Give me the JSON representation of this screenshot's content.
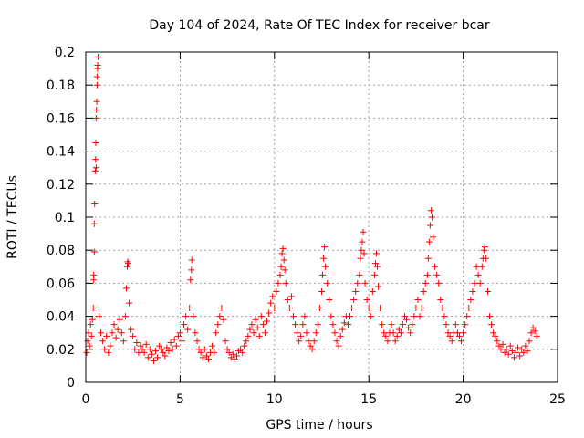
{
  "chart_data": {
    "type": "scatter",
    "title": "Day 104 of 2024, Rate Of TEC Index for receiver bcar",
    "xlabel": "GPS time / hours",
    "ylabel": "ROTI / TECUs",
    "xlim": [
      0,
      25
    ],
    "ylim": [
      0,
      0.2
    ],
    "x_ticks": [
      0,
      5,
      10,
      15,
      20,
      25
    ],
    "x_tick_labels": [
      "0",
      "5",
      "10",
      "15",
      "20",
      "25"
    ],
    "y_ticks": [
      0,
      0.02,
      0.04,
      0.06,
      0.08,
      0.1,
      0.12,
      0.14,
      0.16,
      0.18,
      0.2
    ],
    "y_tick_labels": [
      "0",
      "0.02",
      "0.04",
      "0.06",
      "0.08",
      "0.1",
      "0.12",
      "0.14",
      "0.16",
      "0.18",
      "0.2"
    ],
    "grid": true,
    "marker": "+",
    "color": "#ff0000",
    "series": [
      {
        "name": "ROTI",
        "points": [
          [
            0.05,
            0.018
          ],
          [
            0.1,
            0.025
          ],
          [
            0.15,
            0.03
          ],
          [
            0.2,
            0.022
          ],
          [
            0.25,
            0.035
          ],
          [
            0.3,
            0.028
          ],
          [
            0.35,
            0.038
          ],
          [
            0.4,
            0.045
          ],
          [
            0.42,
            0.065
          ],
          [
            0.45,
            0.096
          ],
          [
            0.47,
            0.108
          ],
          [
            0.5,
            0.128
          ],
          [
            0.52,
            0.135
          ],
          [
            0.53,
            0.145
          ],
          [
            0.55,
            0.16
          ],
          [
            0.57,
            0.165
          ],
          [
            0.58,
            0.17
          ],
          [
            0.6,
            0.18
          ],
          [
            0.62,
            0.19
          ],
          [
            0.63,
            0.192
          ],
          [
            0.65,
            0.197
          ],
          [
            0.6,
            0.185
          ],
          [
            0.55,
            0.13
          ],
          [
            0.45,
            0.079
          ],
          [
            0.42,
            0.062
          ],
          [
            0.7,
            0.04
          ],
          [
            0.8,
            0.03
          ],
          [
            0.9,
            0.025
          ],
          [
            1.0,
            0.02
          ],
          [
            1.1,
            0.028
          ],
          [
            1.2,
            0.018
          ],
          [
            1.3,
            0.022
          ],
          [
            1.4,
            0.03
          ],
          [
            1.5,
            0.035
          ],
          [
            1.6,
            0.027
          ],
          [
            1.7,
            0.032
          ],
          [
            1.8,
            0.038
          ],
          [
            1.9,
            0.03
          ],
          [
            2.0,
            0.025
          ],
          [
            2.1,
            0.04
          ],
          [
            2.15,
            0.057
          ],
          [
            2.2,
            0.07
          ],
          [
            2.22,
            0.073
          ],
          [
            2.25,
            0.072
          ],
          [
            2.3,
            0.048
          ],
          [
            2.4,
            0.032
          ],
          [
            2.5,
            0.028
          ],
          [
            2.6,
            0.02
          ],
          [
            2.7,
            0.024
          ],
          [
            2.8,
            0.018
          ],
          [
            2.9,
            0.022
          ],
          [
            3.0,
            0.02
          ],
          [
            3.1,
            0.018
          ],
          [
            3.2,
            0.023
          ],
          [
            3.3,
            0.015
          ],
          [
            3.4,
            0.02
          ],
          [
            3.5,
            0.017
          ],
          [
            3.6,
            0.013
          ],
          [
            3.7,
            0.019
          ],
          [
            3.8,
            0.015
          ],
          [
            3.9,
            0.022
          ],
          [
            4.0,
            0.02
          ],
          [
            4.1,
            0.018
          ],
          [
            4.2,
            0.016
          ],
          [
            4.3,
            0.021
          ],
          [
            4.4,
            0.019
          ],
          [
            4.5,
            0.024
          ],
          [
            4.6,
            0.02
          ],
          [
            4.7,
            0.026
          ],
          [
            4.8,
            0.022
          ],
          [
            4.9,
            0.028
          ],
          [
            5.0,
            0.03
          ],
          [
            5.1,
            0.025
          ],
          [
            5.2,
            0.035
          ],
          [
            5.3,
            0.04
          ],
          [
            5.4,
            0.032
          ],
          [
            5.5,
            0.045
          ],
          [
            5.55,
            0.062
          ],
          [
            5.6,
            0.068
          ],
          [
            5.62,
            0.074
          ],
          [
            5.7,
            0.04
          ],
          [
            5.8,
            0.03
          ],
          [
            5.9,
            0.025
          ],
          [
            6.0,
            0.02
          ],
          [
            6.1,
            0.018
          ],
          [
            6.2,
            0.015
          ],
          [
            6.3,
            0.02
          ],
          [
            6.4,
            0.016
          ],
          [
            6.5,
            0.014
          ],
          [
            6.6,
            0.018
          ],
          [
            6.7,
            0.022
          ],
          [
            6.8,
            0.018
          ],
          [
            6.9,
            0.03
          ],
          [
            7.0,
            0.035
          ],
          [
            7.1,
            0.04
          ],
          [
            7.2,
            0.045
          ],
          [
            7.3,
            0.038
          ],
          [
            7.4,
            0.025
          ],
          [
            7.5,
            0.02
          ],
          [
            7.6,
            0.018
          ],
          [
            7.7,
            0.015
          ],
          [
            7.8,
            0.017
          ],
          [
            7.9,
            0.014
          ],
          [
            8.0,
            0.016
          ],
          [
            8.1,
            0.019
          ],
          [
            8.2,
            0.02
          ],
          [
            8.3,
            0.018
          ],
          [
            8.4,
            0.022
          ],
          [
            8.5,
            0.025
          ],
          [
            8.6,
            0.028
          ],
          [
            8.7,
            0.032
          ],
          [
            8.8,
            0.035
          ],
          [
            8.9,
            0.03
          ],
          [
            9.0,
            0.038
          ],
          [
            9.1,
            0.033
          ],
          [
            9.2,
            0.028
          ],
          [
            9.3,
            0.04
          ],
          [
            9.4,
            0.035
          ],
          [
            9.5,
            0.03
          ],
          [
            9.6,
            0.037
          ],
          [
            9.7,
            0.042
          ],
          [
            9.8,
            0.048
          ],
          [
            9.9,
            0.052
          ],
          [
            10.0,
            0.045
          ],
          [
            10.1,
            0.055
          ],
          [
            10.2,
            0.06
          ],
          [
            10.3,
            0.065
          ],
          [
            10.35,
            0.07
          ],
          [
            10.4,
            0.078
          ],
          [
            10.45,
            0.081
          ],
          [
            10.5,
            0.074
          ],
          [
            10.55,
            0.068
          ],
          [
            10.6,
            0.06
          ],
          [
            10.7,
            0.05
          ],
          [
            10.8,
            0.045
          ],
          [
            10.9,
            0.052
          ],
          [
            11.0,
            0.04
          ],
          [
            11.1,
            0.035
          ],
          [
            11.2,
            0.03
          ],
          [
            11.3,
            0.025
          ],
          [
            11.4,
            0.028
          ],
          [
            11.5,
            0.035
          ],
          [
            11.6,
            0.04
          ],
          [
            11.7,
            0.03
          ],
          [
            11.8,
            0.025
          ],
          [
            11.9,
            0.022
          ],
          [
            12.0,
            0.02
          ],
          [
            12.1,
            0.025
          ],
          [
            12.2,
            0.03
          ],
          [
            12.3,
            0.035
          ],
          [
            12.4,
            0.045
          ],
          [
            12.5,
            0.055
          ],
          [
            12.55,
            0.065
          ],
          [
            12.6,
            0.075
          ],
          [
            12.65,
            0.082
          ],
          [
            12.7,
            0.07
          ],
          [
            12.8,
            0.06
          ],
          [
            12.9,
            0.05
          ],
          [
            13.0,
            0.04
          ],
          [
            13.1,
            0.035
          ],
          [
            13.2,
            0.03
          ],
          [
            13.3,
            0.025
          ],
          [
            13.4,
            0.022
          ],
          [
            13.5,
            0.028
          ],
          [
            13.6,
            0.032
          ],
          [
            13.7,
            0.036
          ],
          [
            13.8,
            0.04
          ],
          [
            13.9,
            0.035
          ],
          [
            14.0,
            0.04
          ],
          [
            14.1,
            0.045
          ],
          [
            14.2,
            0.05
          ],
          [
            14.3,
            0.055
          ],
          [
            14.4,
            0.06
          ],
          [
            14.5,
            0.065
          ],
          [
            14.55,
            0.075
          ],
          [
            14.6,
            0.08
          ],
          [
            14.65,
            0.085
          ],
          [
            14.7,
            0.091
          ],
          [
            14.75,
            0.078
          ],
          [
            14.8,
            0.06
          ],
          [
            14.9,
            0.05
          ],
          [
            15.0,
            0.045
          ],
          [
            15.1,
            0.04
          ],
          [
            15.2,
            0.055
          ],
          [
            15.3,
            0.065
          ],
          [
            15.35,
            0.072
          ],
          [
            15.4,
            0.078
          ],
          [
            15.45,
            0.07
          ],
          [
            15.5,
            0.058
          ],
          [
            15.6,
            0.045
          ],
          [
            15.7,
            0.035
          ],
          [
            15.8,
            0.03
          ],
          [
            15.9,
            0.028
          ],
          [
            16.0,
            0.025
          ],
          [
            16.1,
            0.03
          ],
          [
            16.2,
            0.035
          ],
          [
            16.3,
            0.03
          ],
          [
            16.4,
            0.025
          ],
          [
            16.5,
            0.028
          ],
          [
            16.6,
            0.032
          ],
          [
            16.7,
            0.03
          ],
          [
            16.8,
            0.035
          ],
          [
            16.9,
            0.04
          ],
          [
            17.0,
            0.038
          ],
          [
            17.1,
            0.033
          ],
          [
            17.2,
            0.03
          ],
          [
            17.3,
            0.035
          ],
          [
            17.4,
            0.04
          ],
          [
            17.5,
            0.045
          ],
          [
            17.6,
            0.05
          ],
          [
            17.7,
            0.04
          ],
          [
            17.8,
            0.045
          ],
          [
            17.9,
            0.055
          ],
          [
            18.0,
            0.06
          ],
          [
            18.1,
            0.065
          ],
          [
            18.15,
            0.075
          ],
          [
            18.2,
            0.085
          ],
          [
            18.25,
            0.095
          ],
          [
            18.3,
            0.104
          ],
          [
            18.35,
            0.1
          ],
          [
            18.4,
            0.088
          ],
          [
            18.5,
            0.07
          ],
          [
            18.6,
            0.065
          ],
          [
            18.7,
            0.06
          ],
          [
            18.8,
            0.05
          ],
          [
            18.9,
            0.045
          ],
          [
            19.0,
            0.04
          ],
          [
            19.1,
            0.035
          ],
          [
            19.2,
            0.03
          ],
          [
            19.3,
            0.028
          ],
          [
            19.4,
            0.025
          ],
          [
            19.5,
            0.03
          ],
          [
            19.6,
            0.035
          ],
          [
            19.7,
            0.03
          ],
          [
            19.8,
            0.028
          ],
          [
            19.9,
            0.025
          ],
          [
            20.0,
            0.03
          ],
          [
            20.1,
            0.035
          ],
          [
            20.2,
            0.04
          ],
          [
            20.3,
            0.045
          ],
          [
            20.4,
            0.05
          ],
          [
            20.5,
            0.055
          ],
          [
            20.6,
            0.06
          ],
          [
            20.7,
            0.07
          ],
          [
            20.8,
            0.065
          ],
          [
            20.9,
            0.06
          ],
          [
            21.0,
            0.07
          ],
          [
            21.05,
            0.075
          ],
          [
            21.1,
            0.08
          ],
          [
            21.15,
            0.082
          ],
          [
            21.2,
            0.075
          ],
          [
            21.3,
            0.055
          ],
          [
            21.4,
            0.04
          ],
          [
            21.5,
            0.035
          ],
          [
            21.6,
            0.03
          ],
          [
            21.7,
            0.028
          ],
          [
            21.8,
            0.025
          ],
          [
            21.9,
            0.022
          ],
          [
            22.0,
            0.02
          ],
          [
            22.1,
            0.023
          ],
          [
            22.2,
            0.018
          ],
          [
            22.3,
            0.02
          ],
          [
            22.4,
            0.017
          ],
          [
            22.5,
            0.022
          ],
          [
            22.6,
            0.019
          ],
          [
            22.7,
            0.015
          ],
          [
            22.8,
            0.018
          ],
          [
            22.9,
            0.021
          ],
          [
            23.0,
            0.016
          ],
          [
            23.1,
            0.02
          ],
          [
            23.2,
            0.018
          ],
          [
            23.3,
            0.022
          ],
          [
            23.4,
            0.019
          ],
          [
            23.5,
            0.025
          ],
          [
            23.6,
            0.03
          ],
          [
            23.7,
            0.033
          ],
          [
            23.8,
            0.031
          ],
          [
            23.9,
            0.028
          ]
        ]
      }
    ]
  }
}
